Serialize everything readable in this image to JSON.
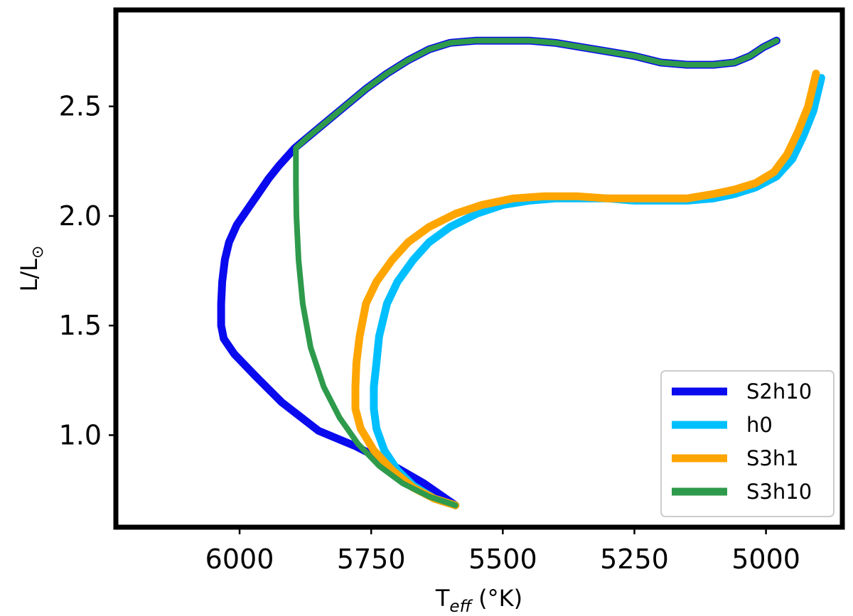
{
  "chart_data": {
    "type": "line",
    "title": "",
    "xlabel": {
      "main": "T",
      "sub": "eff",
      "unit": "(°K)"
    },
    "ylabel": {
      "main": "L/L",
      "sub": "⊙"
    },
    "xlim": [
      6235,
      4855
    ],
    "ylim": [
      0.58,
      2.94
    ],
    "x_ticks": [
      6000,
      5750,
      5500,
      5250,
      5000
    ],
    "x_tick_labels": [
      "6000",
      "5750",
      "5500",
      "5250",
      "5000"
    ],
    "y_ticks": [
      1.0,
      1.5,
      2.0,
      2.5
    ],
    "y_tick_labels": [
      "1.0",
      "1.5",
      "2.0",
      "2.5"
    ],
    "grid": false,
    "legend": "lower-right",
    "series": [
      {
        "name": "S2h10",
        "color": "#0a0aee",
        "points": [
          [
            5590,
            0.68
          ],
          [
            5650,
            0.78
          ],
          [
            5715,
            0.87
          ],
          [
            5780,
            0.95
          ],
          [
            5850,
            1.02
          ],
          [
            5920,
            1.15
          ],
          [
            5970,
            1.27
          ],
          [
            6010,
            1.37
          ],
          [
            6030,
            1.44
          ],
          [
            6035,
            1.5
          ],
          [
            6035,
            1.6
          ],
          [
            6033,
            1.7
          ],
          [
            6028,
            1.8
          ],
          [
            6020,
            1.88
          ],
          [
            6005,
            1.96
          ],
          [
            5985,
            2.03
          ],
          [
            5965,
            2.1
          ],
          [
            5945,
            2.17
          ],
          [
            5925,
            2.23
          ],
          [
            5910,
            2.27
          ],
          [
            5895,
            2.31
          ],
          [
            5870,
            2.36
          ],
          [
            5840,
            2.42
          ],
          [
            5800,
            2.5
          ],
          [
            5760,
            2.58
          ],
          [
            5720,
            2.65
          ],
          [
            5680,
            2.71
          ],
          [
            5640,
            2.76
          ],
          [
            5600,
            2.79
          ],
          [
            5550,
            2.8
          ],
          [
            5500,
            2.8
          ],
          [
            5450,
            2.8
          ],
          [
            5400,
            2.79
          ],
          [
            5350,
            2.77
          ],
          [
            5300,
            2.75
          ],
          [
            5250,
            2.73
          ],
          [
            5200,
            2.7
          ],
          [
            5150,
            2.69
          ],
          [
            5100,
            2.69
          ],
          [
            5060,
            2.7
          ],
          [
            5030,
            2.73
          ],
          [
            5005,
            2.77
          ],
          [
            4980,
            2.8
          ]
        ]
      },
      {
        "name": "h0",
        "color": "#00bfff",
        "points": [
          [
            5590,
            0.68
          ],
          [
            5630,
            0.71
          ],
          [
            5670,
            0.77
          ],
          [
            5700,
            0.84
          ],
          [
            5725,
            0.93
          ],
          [
            5740,
            1.03
          ],
          [
            5745,
            1.12
          ],
          [
            5745,
            1.22
          ],
          [
            5740,
            1.33
          ],
          [
            5735,
            1.45
          ],
          [
            5720,
            1.6
          ],
          [
            5700,
            1.7
          ],
          [
            5670,
            1.8
          ],
          [
            5640,
            1.88
          ],
          [
            5600,
            1.95
          ],
          [
            5550,
            2.01
          ],
          [
            5500,
            2.05
          ],
          [
            5450,
            2.07
          ],
          [
            5400,
            2.08
          ],
          [
            5350,
            2.08
          ],
          [
            5300,
            2.08
          ],
          [
            5250,
            2.07
          ],
          [
            5200,
            2.07
          ],
          [
            5150,
            2.07
          ],
          [
            5100,
            2.08
          ],
          [
            5060,
            2.1
          ],
          [
            5020,
            2.13
          ],
          [
            4980,
            2.18
          ],
          [
            4950,
            2.26
          ],
          [
            4930,
            2.36
          ],
          [
            4910,
            2.48
          ],
          [
            4895,
            2.63
          ]
        ]
      },
      {
        "name": "S3h1",
        "color": "#ffa500",
        "points": [
          [
            5590,
            0.68
          ],
          [
            5630,
            0.71
          ],
          [
            5670,
            0.76
          ],
          [
            5710,
            0.84
          ],
          [
            5745,
            0.93
          ],
          [
            5770,
            1.03
          ],
          [
            5780,
            1.12
          ],
          [
            5780,
            1.22
          ],
          [
            5778,
            1.33
          ],
          [
            5772,
            1.45
          ],
          [
            5760,
            1.6
          ],
          [
            5740,
            1.7
          ],
          [
            5710,
            1.8
          ],
          [
            5680,
            1.88
          ],
          [
            5640,
            1.95
          ],
          [
            5590,
            2.01
          ],
          [
            5540,
            2.05
          ],
          [
            5480,
            2.08
          ],
          [
            5420,
            2.09
          ],
          [
            5360,
            2.09
          ],
          [
            5300,
            2.08
          ],
          [
            5250,
            2.08
          ],
          [
            5200,
            2.08
          ],
          [
            5150,
            2.08
          ],
          [
            5100,
            2.1
          ],
          [
            5060,
            2.12
          ],
          [
            5020,
            2.15
          ],
          [
            4985,
            2.2
          ],
          [
            4960,
            2.28
          ],
          [
            4940,
            2.38
          ],
          [
            4920,
            2.5
          ],
          [
            4905,
            2.65
          ]
        ]
      },
      {
        "name": "S3h10",
        "color": "#2e9a4b",
        "points": [
          [
            5590,
            0.68
          ],
          [
            5640,
            0.72
          ],
          [
            5690,
            0.78
          ],
          [
            5735,
            0.86
          ],
          [
            5775,
            0.96
          ],
          [
            5810,
            1.08
          ],
          [
            5840,
            1.22
          ],
          [
            5865,
            1.4
          ],
          [
            5880,
            1.6
          ],
          [
            5888,
            1.8
          ],
          [
            5892,
            2.0
          ],
          [
            5893,
            2.15
          ],
          [
            5893,
            2.25
          ],
          [
            5893,
            2.31
          ],
          [
            5870,
            2.36
          ],
          [
            5840,
            2.42
          ],
          [
            5800,
            2.5
          ],
          [
            5760,
            2.58
          ],
          [
            5720,
            2.65
          ],
          [
            5680,
            2.71
          ],
          [
            5640,
            2.76
          ],
          [
            5600,
            2.79
          ],
          [
            5550,
            2.8
          ],
          [
            5500,
            2.8
          ],
          [
            5450,
            2.8
          ],
          [
            5400,
            2.79
          ],
          [
            5350,
            2.77
          ],
          [
            5300,
            2.75
          ],
          [
            5250,
            2.73
          ],
          [
            5200,
            2.7
          ],
          [
            5150,
            2.69
          ],
          [
            5100,
            2.69
          ],
          [
            5060,
            2.7
          ],
          [
            5030,
            2.73
          ],
          [
            5005,
            2.77
          ],
          [
            4980,
            2.8
          ]
        ]
      }
    ]
  }
}
